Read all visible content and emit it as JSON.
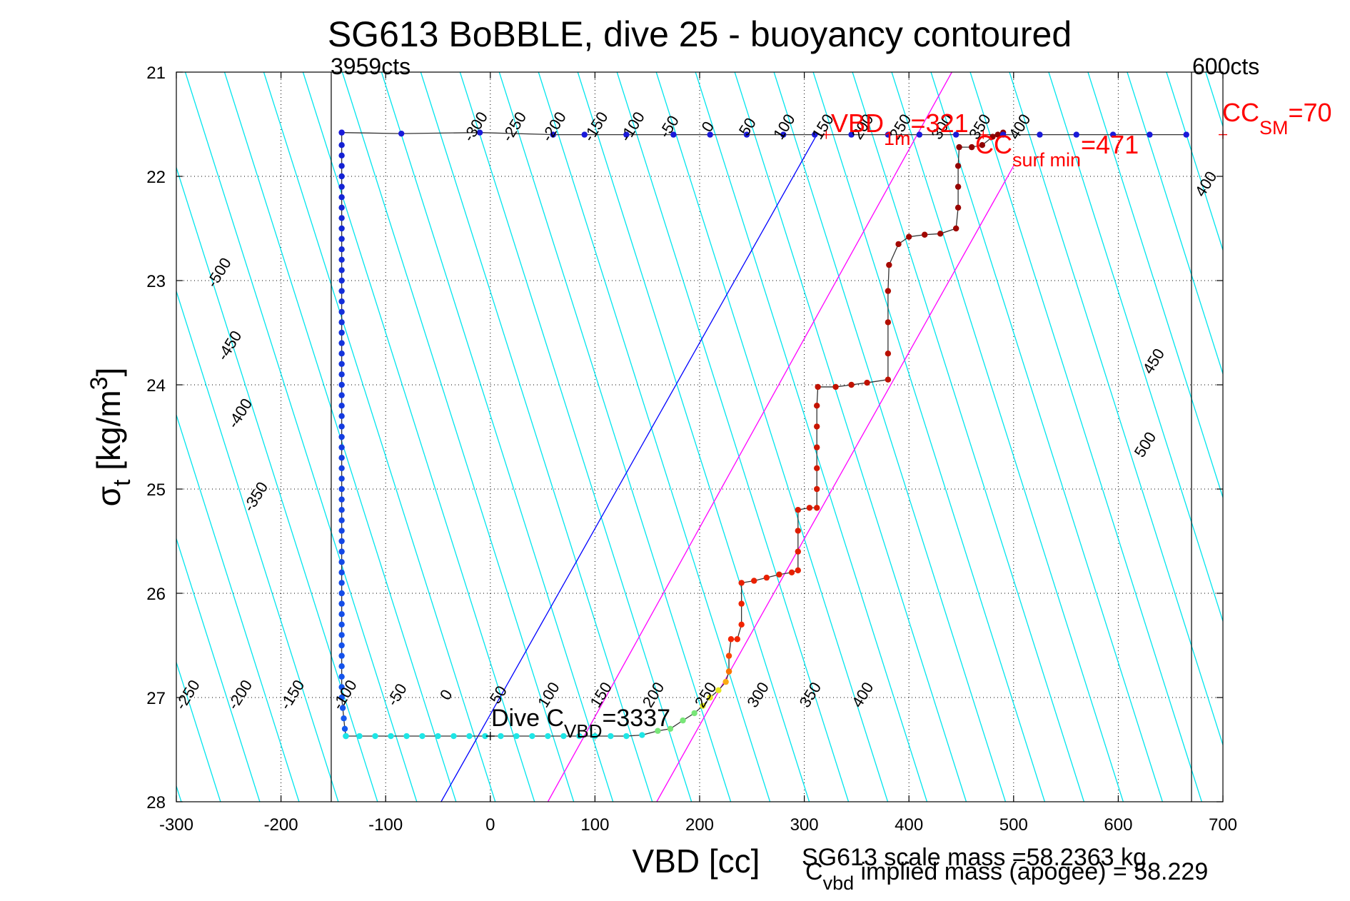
{
  "chart_data": {
    "type": "scatter",
    "title": "SG613 BoBBLE, dive 25 - buoyancy contoured",
    "xlabel": "VBD [cc]",
    "ylabel_main": "σ",
    "ylabel_sub": "t",
    "ylabel_rest": " [kg/m",
    "ylabel_sup": "3",
    "ylabel_close": "]",
    "xlim": [
      -300,
      700
    ],
    "ylim": [
      28,
      21
    ],
    "y_reversed": true,
    "grid": "dotted",
    "xticks": [
      -300,
      -200,
      -100,
      0,
      100,
      200,
      300,
      400,
      500,
      600,
      700
    ],
    "yticks": [
      21,
      22,
      23,
      24,
      25,
      26,
      27,
      28
    ],
    "counts_left": "3959cts",
    "counts_right": "600cts",
    "counts_lines_x": [
      -152,
      670
    ],
    "contour_slope": 31.6,
    "contour_color": "#00e5ee",
    "contours_top": {
      "labels": [
        "-300",
        "-250",
        "-200",
        "-150",
        "-100",
        "-50",
        "0",
        "50",
        "100",
        "150",
        "200",
        "250",
        "300",
        "350",
        "400"
      ],
      "x_at_sigma": 21.6,
      "x_positions": [
        -10,
        27,
        65,
        105,
        140,
        175,
        212,
        250,
        285,
        322,
        360,
        396,
        436,
        472,
        510
      ]
    },
    "contours_bottom": {
      "labels": [
        "-250",
        "-200",
        "-150",
        "-100",
        "-50",
        "0",
        "50",
        "100",
        "150",
        "200",
        "250",
        "300",
        "350",
        "400"
      ],
      "x_at_sigma": 27.4,
      "x_positions": [
        -285,
        -235,
        -185,
        -135,
        -85,
        -38,
        12,
        60,
        110,
        160,
        210,
        260,
        310,
        360
      ]
    },
    "contours_left": {
      "labels": [
        "-500",
        "-450",
        "-400",
        "-350"
      ],
      "points": [
        [
          -255,
          22.95
        ],
        [
          -245,
          23.65
        ],
        [
          -235,
          24.3
        ],
        [
          -220,
          25.1
        ]
      ]
    },
    "contours_right": {
      "labels": [
        "400",
        "450",
        "500"
      ],
      "points": [
        [
          688,
          22.1
        ],
        [
          638,
          23.8
        ],
        [
          630,
          24.6
        ]
      ]
    },
    "special_lines": [
      {
        "name": "",
        "color": "#0000ff",
        "points": [
          [
            -47,
            28
          ],
          [
            312,
            21.6
          ]
        ]
      },
      {
        "name": "",
        "color": "#ff00ff",
        "points": [
          [
            55,
            28
          ],
          [
            441,
            21
          ]
        ]
      },
      {
        "name": "",
        "color": "#ff00ff",
        "points": [
          [
            159,
            28
          ],
          [
            500,
            21.9
          ]
        ]
      }
    ],
    "descent_profile": [
      [
        -142,
        21.58
      ],
      [
        -142,
        21.7
      ],
      [
        -142,
        21.8
      ],
      [
        -142,
        21.9
      ],
      [
        -142,
        22.0
      ],
      [
        -142,
        22.1
      ],
      [
        -142,
        22.2
      ],
      [
        -142,
        22.3
      ],
      [
        -142,
        22.4
      ],
      [
        -142,
        22.5
      ],
      [
        -142,
        22.6
      ],
      [
        -142,
        22.7
      ],
      [
        -142,
        22.8
      ],
      [
        -142,
        22.9
      ],
      [
        -142,
        23.0
      ],
      [
        -142,
        23.1
      ],
      [
        -142,
        23.2
      ],
      [
        -142,
        23.3
      ],
      [
        -142,
        23.4
      ],
      [
        -142,
        23.5
      ],
      [
        -142,
        23.6
      ],
      [
        -142,
        23.7
      ],
      [
        -142,
        23.8
      ],
      [
        -142,
        23.9
      ],
      [
        -142,
        24.0
      ],
      [
        -142,
        24.1
      ],
      [
        -142,
        24.2
      ],
      [
        -142,
        24.3
      ],
      [
        -142,
        24.4
      ],
      [
        -142,
        24.5
      ],
      [
        -142,
        24.6
      ],
      [
        -142,
        24.7
      ],
      [
        -142,
        24.8
      ],
      [
        -142,
        24.9
      ],
      [
        -142,
        25.0
      ],
      [
        -142,
        25.1
      ],
      [
        -142,
        25.2
      ],
      [
        -142,
        25.3
      ],
      [
        -142,
        25.4
      ],
      [
        -142,
        25.5
      ],
      [
        -142,
        25.6
      ],
      [
        -142,
        25.7
      ],
      [
        -142,
        25.8
      ],
      [
        -142,
        25.9
      ],
      [
        -142,
        26.0
      ],
      [
        -142,
        26.1
      ],
      [
        -142,
        26.2
      ],
      [
        -142,
        26.3
      ],
      [
        -142,
        26.4
      ],
      [
        -142,
        26.5
      ],
      [
        -142,
        26.6
      ],
      [
        -142,
        26.7
      ],
      [
        -142,
        26.8
      ],
      [
        -142,
        26.9
      ],
      [
        -142,
        27.0
      ],
      [
        -141,
        27.1
      ],
      [
        -140,
        27.2
      ],
      [
        -139,
        27.3
      ],
      [
        -138,
        27.37
      ]
    ],
    "apogee_track": [
      [
        -138,
        27.37
      ],
      [
        -125,
        27.37
      ],
      [
        -110,
        27.37
      ],
      [
        -95,
        27.37
      ],
      [
        -80,
        27.37
      ],
      [
        -65,
        27.37
      ],
      [
        -50,
        27.37
      ],
      [
        -35,
        27.37
      ],
      [
        -20,
        27.37
      ],
      [
        -5,
        27.37
      ],
      [
        10,
        27.37
      ],
      [
        25,
        27.37
      ],
      [
        40,
        27.37
      ],
      [
        55,
        27.37
      ],
      [
        70,
        27.37
      ],
      [
        85,
        27.37
      ],
      [
        100,
        27.37
      ],
      [
        115,
        27.37
      ],
      [
        130,
        27.37
      ],
      [
        145,
        27.36
      ],
      [
        160,
        27.32
      ],
      [
        172,
        27.3
      ],
      [
        184,
        27.22
      ],
      [
        195,
        27.15
      ],
      [
        203,
        27.08
      ],
      [
        210,
        27.0
      ],
      [
        218,
        26.93
      ],
      [
        225,
        26.85
      ],
      [
        228,
        26.75
      ]
    ],
    "ascent_profile": [
      [
        228,
        26.75
      ],
      [
        228,
        26.6
      ],
      [
        230,
        26.44
      ],
      [
        236,
        26.44
      ],
      [
        240,
        26.3
      ],
      [
        240,
        26.1
      ],
      [
        240,
        25.9
      ],
      [
        252,
        25.88
      ],
      [
        264,
        25.85
      ],
      [
        276,
        25.82
      ],
      [
        288,
        25.8
      ],
      [
        294,
        25.78
      ],
      [
        294,
        25.6
      ],
      [
        294,
        25.4
      ],
      [
        294,
        25.2
      ],
      [
        305,
        25.18
      ],
      [
        312,
        25.18
      ],
      [
        312,
        25.0
      ],
      [
        312,
        24.8
      ],
      [
        312,
        24.6
      ],
      [
        312,
        24.4
      ],
      [
        312,
        24.2
      ],
      [
        313,
        24.02
      ],
      [
        330,
        24.02
      ],
      [
        345,
        24.0
      ],
      [
        360,
        23.98
      ],
      [
        380,
        23.95
      ],
      [
        380,
        23.7
      ],
      [
        380,
        23.4
      ],
      [
        380,
        23.1
      ],
      [
        381,
        22.85
      ],
      [
        390,
        22.65
      ],
      [
        400,
        22.58
      ],
      [
        415,
        22.56
      ],
      [
        430,
        22.55
      ],
      [
        445,
        22.5
      ],
      [
        447,
        22.3
      ],
      [
        447,
        22.1
      ],
      [
        447,
        21.9
      ],
      [
        448,
        21.72
      ],
      [
        460,
        21.72
      ],
      [
        470,
        21.7
      ],
      [
        480,
        21.62
      ],
      [
        485,
        21.6
      ],
      [
        490,
        21.58
      ]
    ],
    "surface_line": {
      "points": [
        [
          -142,
          21.58
        ],
        [
          -85,
          21.59
        ],
        [
          -10,
          21.58
        ],
        [
          60,
          21.6
        ],
        [
          90,
          21.6
        ],
        [
          130,
          21.6
        ],
        [
          175,
          21.6
        ],
        [
          210,
          21.6
        ],
        [
          245,
          21.6
        ],
        [
          280,
          21.6
        ],
        [
          310,
          21.6
        ],
        [
          345,
          21.6
        ],
        [
          380,
          21.6
        ],
        [
          410,
          21.6
        ],
        [
          445,
          21.6
        ],
        [
          490,
          21.6
        ],
        [
          525,
          21.6
        ],
        [
          560,
          21.6
        ],
        [
          595,
          21.6
        ],
        [
          630,
          21.6
        ],
        [
          665,
          21.6
        ]
      ],
      "color": "#1a1ad9"
    },
    "annotations": {
      "dive_c_main": "Dive C",
      "dive_c_sub": "VBD",
      "dive_c_value": "=3337",
      "dive_c_pos": [
        0,
        27.37
      ],
      "vbd1m_main": "VBD",
      "vbd1m_sub": "1m",
      "vbd1m_value": "=321",
      "vbd1m_pos": [
        321,
        21.6
      ],
      "ccsurf_main": "CC",
      "ccsurf_sub": "surf min",
      "ccsurf_value": "=471",
      "ccsurf_pos": [
        471,
        21.6
      ],
      "ccsm_main": "CC",
      "ccsm_sub": "SM",
      "ccsm_value": "=70",
      "ccsm_pos": [
        700,
        21.6
      ],
      "annotation_color": "#ff0000"
    },
    "footer": {
      "scale_mass": "SG613 scale mass =58.2363 kg",
      "implied_main": "C",
      "implied_sub": "vbd",
      "implied_rest": " implied mass (apogee) = 58.229"
    }
  }
}
